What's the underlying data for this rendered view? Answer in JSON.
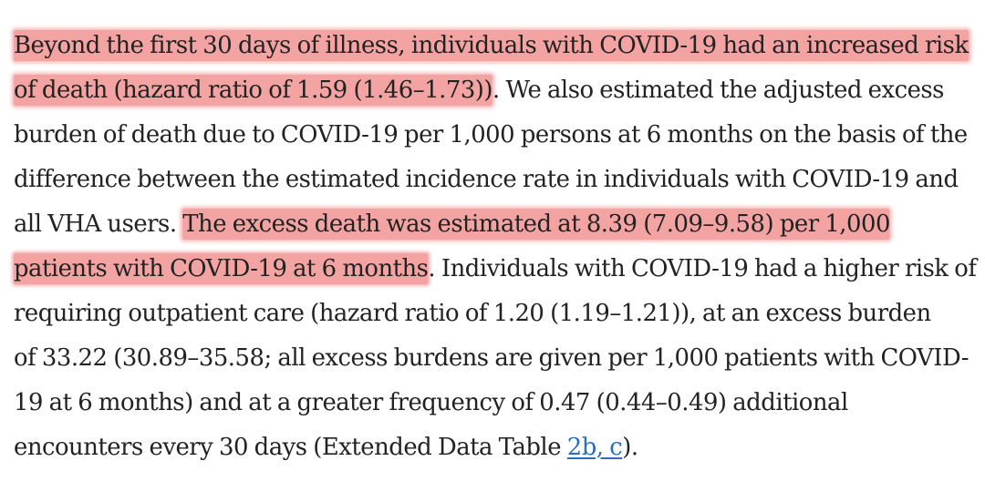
{
  "colors": {
    "text": "#222222",
    "highlight": "#f4a3a3",
    "link": "#2a6ebd",
    "background": "#ffffff"
  },
  "paragraph": {
    "l1_hl": "Beyond the first 30 days of illness, individuals with COVID-19 had an increased risk",
    "l2_hl": "of death (hazard ratio of 1.59 (1.46–1.73))",
    "l2_rest": ". We also estimated the adjusted excess",
    "l3": "burden of death due to COVID-19 per 1,000 persons at 6 months on the basis of the",
    "l4": "difference between the estimated incidence rate in individuals with COVID-19 and",
    "l5_pre": "all VHA users. ",
    "l5_hl": "The excess death was estimated at 8.39 (7.09–9.58) per 1,000",
    "l6_hl": "patients with COVID-19 at 6 months",
    "l6_rest": ". Individuals with COVID-19 had a higher risk of",
    "l7": "requiring outpatient care (hazard ratio of 1.20 (1.19–1.21)), at an excess burden",
    "l8": "of 33.22 (30.89–35.58; all excess burdens are given per 1,000 patients with COVID-",
    "l9": "19 at 6 months) and at a greater frequency of 0.47 (0.44–0.49) additional",
    "l10_pre": "encounters every 30 days (Extended Data Table ",
    "l10_link": "2b, c",
    "l10_post": ")."
  }
}
